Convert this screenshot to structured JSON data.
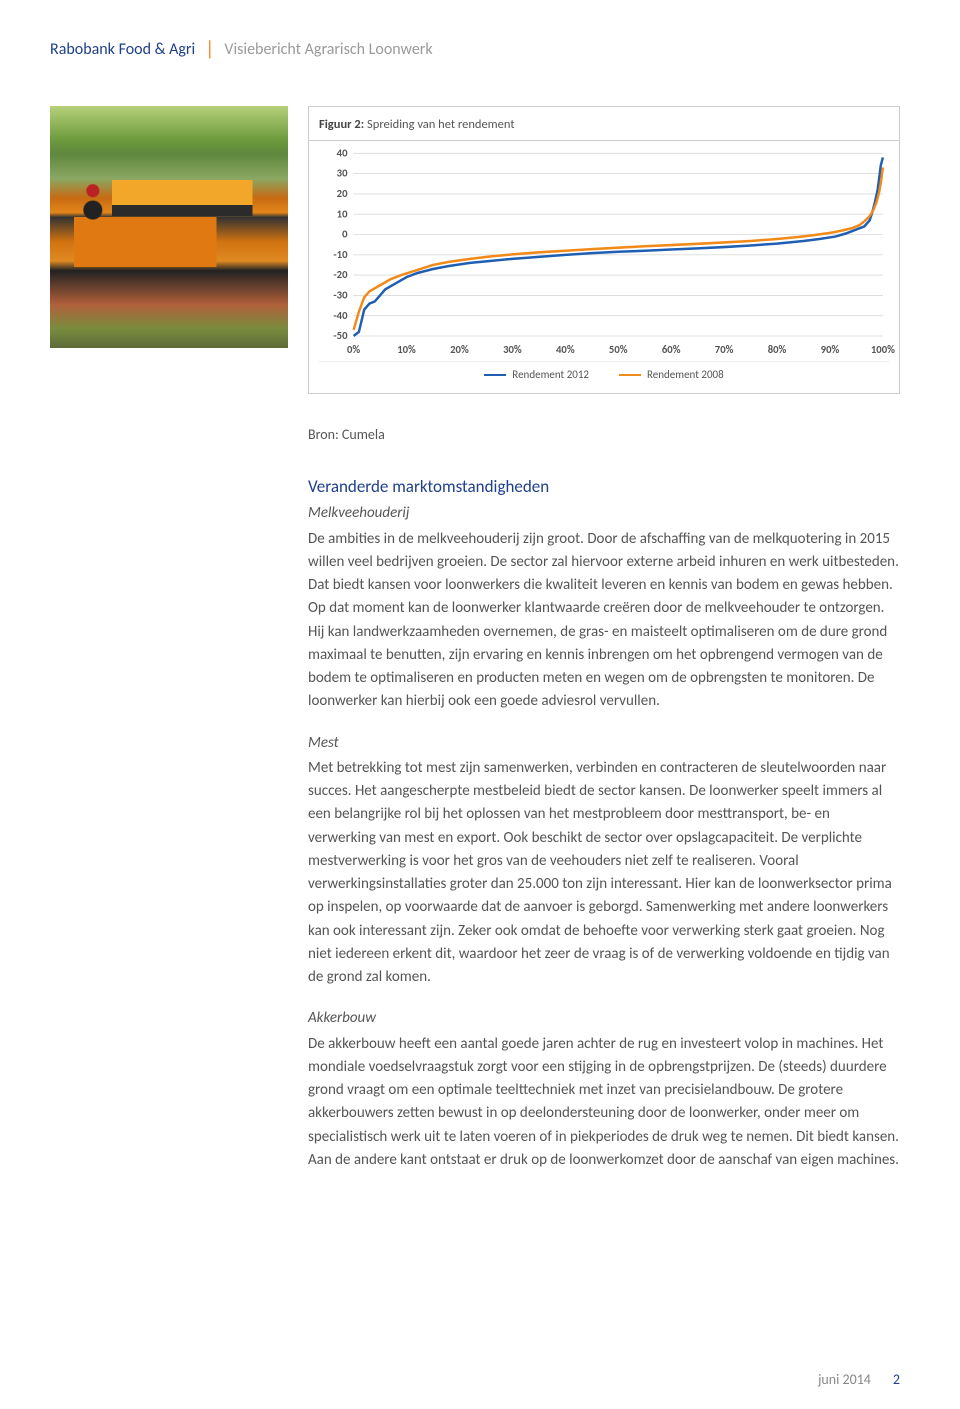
{
  "header": {
    "brand": "Rabobank Food & Agri",
    "subtitle": "Visiebericht Agrarisch Loonwerk"
  },
  "chart": {
    "type": "line",
    "title_prefix": "Figuur 2:",
    "title": "Spreiding van het rendement",
    "ylim": [
      -50,
      40
    ],
    "ytick_step": 10,
    "yticks": [
      "40",
      "30",
      "20",
      "10",
      "0",
      "-10",
      "-20",
      "-30",
      "-40",
      "-50"
    ],
    "xticks": [
      "0%",
      "10%",
      "20%",
      "30%",
      "40%",
      "50%",
      "60%",
      "70%",
      "80%",
      "90%",
      "100%"
    ],
    "series": [
      {
        "name": "Rendement 2012",
        "color": "#1e5fb4",
        "x": [
          0,
          1,
          2,
          3,
          4,
          5,
          6,
          8,
          10,
          12,
          15,
          18,
          22,
          26,
          30,
          35,
          40,
          45,
          50,
          55,
          60,
          65,
          70,
          75,
          80,
          85,
          88,
          91,
          93,
          95,
          96.5,
          97.5,
          98,
          98.5,
          99,
          99.3,
          99.6,
          100
        ],
        "y": [
          -50,
          -48,
          -37,
          -34,
          -33,
          -30,
          -27,
          -24,
          -21,
          -19,
          -17,
          -15.5,
          -14,
          -13,
          -12,
          -11,
          -10,
          -9.2,
          -8.5,
          -8,
          -7.4,
          -6.8,
          -6.2,
          -5.4,
          -4.5,
          -3.2,
          -2.2,
          -1,
          0.5,
          2.5,
          4,
          7,
          11,
          16,
          22,
          28,
          34,
          38
        ]
      },
      {
        "name": "Rendement 2008",
        "color": "#f28a1a",
        "x": [
          0,
          1,
          2,
          3,
          5,
          7,
          9,
          12,
          15,
          18,
          22,
          26,
          30,
          35,
          40,
          45,
          50,
          55,
          60,
          65,
          70,
          75,
          80,
          84,
          87,
          90,
          92,
          94,
          95.5,
          96.5,
          97.5,
          98.2,
          98.8,
          99.3,
          99.7,
          100
        ],
        "y": [
          -47,
          -38,
          -31,
          -28,
          -25,
          -22,
          -20,
          -17.5,
          -15,
          -13.5,
          -12,
          -10.8,
          -9.8,
          -8.8,
          -8,
          -7.2,
          -6.5,
          -5.8,
          -5.2,
          -4.6,
          -3.9,
          -3.2,
          -2.2,
          -1.2,
          -0.3,
          0.8,
          1.8,
          3,
          4.5,
          6.5,
          9,
          12,
          16,
          21,
          27,
          33
        ]
      }
    ],
    "background_color": "#ffffff",
    "grid_color": "#d9d9d9",
    "border_color": "#cccccc",
    "line_width": 2.4,
    "axis_fontsize": 10.5,
    "axis_fontweight": "700"
  },
  "source_label": "Bron: Cumela",
  "sections": {
    "heading": "Veranderde marktomstandigheden",
    "blocks": [
      {
        "subhead": "Melkveehouderij",
        "body": "De ambities in de melkveehouderij zijn groot. Door de afschaffing van de melkquotering in 2015 willen veel bedrijven groeien. De sector zal hiervoor externe arbeid inhuren en werk uitbesteden. Dat biedt kansen voor loonwerkers die kwaliteit leveren en kennis van bodem en gewas hebben. Op dat moment kan de loonwerker klantwaarde creëren door de melkveehouder te ontzorgen. Hij kan landwerkzaamheden overnemen, de gras- en maisteelt optimaliseren om de dure grond maximaal te benutten, zijn ervaring en kennis inbrengen om het opbrengend vermogen van de bodem te optimaliseren en producten meten en wegen om de opbrengsten te monitoren. De loonwerker kan hierbij ook een goede adviesrol vervullen."
      },
      {
        "subhead": "Mest",
        "body": "Met betrekking tot mest zijn samenwerken, verbinden en contracteren de sleutelwoorden naar succes. Het aangescherpte mestbeleid biedt de sector kansen. De loonwerker speelt immers al een belangrijke rol bij het oplossen van het mestprobleem door mesttransport, be- en verwerking van mest en export. Ook beschikt de sector over opslagcapaciteit. De verplichte mestverwerking is voor het gros van de veehouders niet zelf te realiseren. Vooral verwerkingsinstallaties groter dan 25.000 ton zijn interessant. Hier kan de loonwerksector prima op inspelen, op voorwaarde dat de aanvoer is geborgd. Samenwerking met andere loonwerkers kan ook interessant zijn. Zeker ook omdat de behoefte voor verwerking sterk gaat groeien. Nog niet iedereen erkent dit, waardoor het zeer de vraag is of de verwerking voldoende en tijdig van de grond zal komen."
      },
      {
        "subhead": "Akkerbouw",
        "body": "De akkerbouw heeft een aantal goede jaren achter de rug en investeert volop in machines. Het mondiale voedselvraagstuk zorgt voor een stijging in de opbrengstprijzen. De (steeds) duurdere grond vraagt om een optimale teelttechniek met inzet van precisielandbouw. De grotere akkerbouwers zetten bewust in op deelondersteuning door de loonwerker, onder meer om specialistisch werk uit te laten voeren of in piekperiodes de druk weg te nemen. Dit biedt kansen. Aan de andere kant ontstaat er druk op de loonwerkomzet door de aanschaf van eigen machines."
      }
    ]
  },
  "footer": {
    "date": "juni 2014",
    "page": "2"
  }
}
